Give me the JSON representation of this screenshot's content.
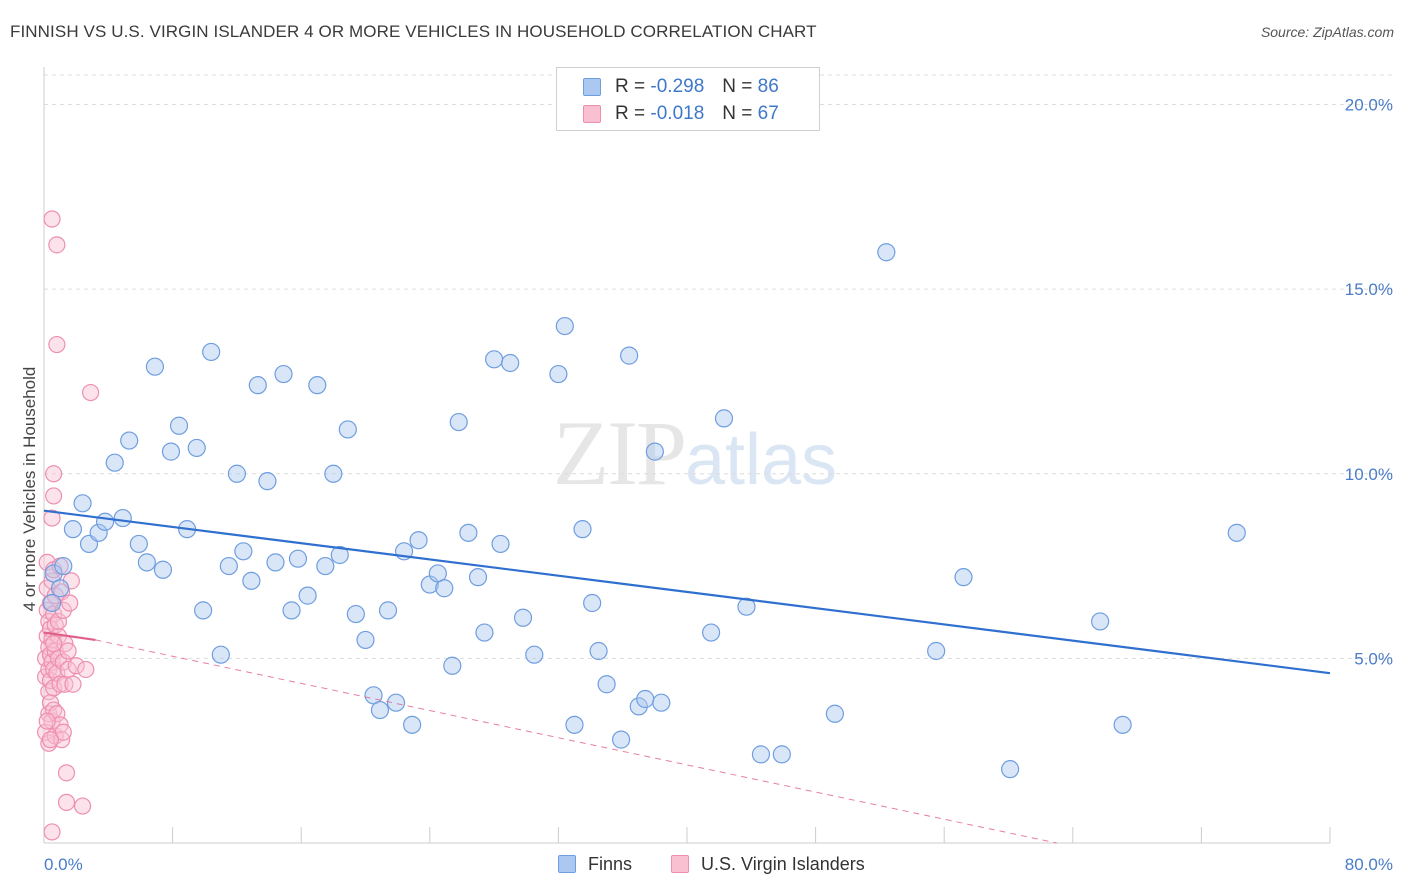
{
  "title": "FINNISH VS U.S. VIRGIN ISLANDER 4 OR MORE VEHICLES IN HOUSEHOLD CORRELATION CHART",
  "source": "Source: ZipAtlas.com",
  "watermark": {
    "zip": "ZIP",
    "atlas": "atlas"
  },
  "legend": {
    "rows": [
      {
        "r_label": "R =",
        "r_value": "-0.298",
        "n_label": "N =",
        "n_value": "86",
        "color": "#aac8f0",
        "border": "#6f9ee0"
      },
      {
        "r_label": "R =",
        "r_value": "-0.018",
        "n_label": "N =",
        "n_value": "67",
        "color": "#f9c0d2",
        "border": "#ee8fae"
      }
    ]
  },
  "bottom_legend": [
    {
      "label": "Finns",
      "color": "#aac8f0",
      "border": "#6f9ee0"
    },
    {
      "label": "U.S. Virgin Islanders",
      "color": "#f9c0d2",
      "border": "#ee8fae"
    }
  ],
  "chart_data": {
    "type": "scatter",
    "title": "FINNISH VS U.S. VIRGIN ISLANDER 4 OR MORE VEHICLES IN HOUSEHOLD CORRELATION CHART",
    "xlabel": "",
    "ylabel": "4 or more Vehicles in Household",
    "xlim": [
      0,
      80
    ],
    "ylim": [
      0,
      20.8
    ],
    "x_tick_labels": [
      "0.0%",
      "80.0%"
    ],
    "y_ticks": [
      5,
      10,
      15,
      20
    ],
    "y_tick_labels": [
      "5.0%",
      "10.0%",
      "15.0%",
      "20.0%"
    ],
    "grid": true,
    "legend_position": "top-center",
    "series": [
      {
        "name": "Finns",
        "color": "#6f9ee0",
        "fill": "#aac8f0",
        "line_color": "#2f6fd0",
        "trend": {
          "x": [
            0,
            80
          ],
          "y": [
            9.0,
            4.6
          ]
        },
        "points": [
          [
            0.5,
            6.5
          ],
          [
            0.6,
            7.3
          ],
          [
            1.0,
            6.9
          ],
          [
            1.2,
            7.5
          ],
          [
            1.8,
            8.5
          ],
          [
            2.4,
            9.2
          ],
          [
            2.8,
            8.1
          ],
          [
            3.4,
            8.4
          ],
          [
            3.8,
            8.7
          ],
          [
            4.4,
            10.3
          ],
          [
            4.9,
            8.8
          ],
          [
            5.3,
            10.9
          ],
          [
            5.9,
            8.1
          ],
          [
            6.4,
            7.6
          ],
          [
            6.9,
            12.9
          ],
          [
            7.4,
            7.4
          ],
          [
            7.9,
            10.6
          ],
          [
            8.4,
            11.3
          ],
          [
            8.9,
            8.5
          ],
          [
            9.5,
            10.7
          ],
          [
            9.9,
            6.3
          ],
          [
            10.4,
            13.3
          ],
          [
            11.0,
            5.1
          ],
          [
            11.5,
            7.5
          ],
          [
            12.0,
            10.0
          ],
          [
            12.4,
            7.9
          ],
          [
            12.9,
            7.1
          ],
          [
            13.3,
            12.4
          ],
          [
            13.9,
            9.8
          ],
          [
            14.4,
            7.6
          ],
          [
            14.9,
            12.7
          ],
          [
            15.4,
            6.3
          ],
          [
            15.8,
            7.7
          ],
          [
            16.4,
            6.7
          ],
          [
            17.0,
            12.4
          ],
          [
            17.5,
            7.5
          ],
          [
            18.0,
            10.0
          ],
          [
            18.4,
            7.8
          ],
          [
            18.9,
            11.2
          ],
          [
            19.4,
            6.2
          ],
          [
            20.0,
            5.5
          ],
          [
            20.5,
            4.0
          ],
          [
            20.9,
            3.6
          ],
          [
            21.4,
            6.3
          ],
          [
            21.9,
            3.8
          ],
          [
            22.4,
            7.9
          ],
          [
            22.9,
            3.2
          ],
          [
            23.3,
            8.2
          ],
          [
            24.0,
            7.0
          ],
          [
            24.5,
            7.3
          ],
          [
            24.9,
            6.9
          ],
          [
            25.4,
            4.8
          ],
          [
            25.8,
            11.4
          ],
          [
            26.4,
            8.4
          ],
          [
            27.0,
            7.2
          ],
          [
            27.4,
            5.7
          ],
          [
            28.0,
            13.1
          ],
          [
            28.4,
            8.1
          ],
          [
            29.0,
            13.0
          ],
          [
            29.8,
            6.1
          ],
          [
            30.5,
            5.1
          ],
          [
            32.0,
            12.7
          ],
          [
            32.4,
            14.0
          ],
          [
            33.0,
            3.2
          ],
          [
            33.5,
            8.5
          ],
          [
            34.1,
            6.5
          ],
          [
            34.5,
            5.2
          ],
          [
            35.0,
            4.3
          ],
          [
            35.9,
            2.8
          ],
          [
            36.4,
            13.2
          ],
          [
            37.0,
            3.7
          ],
          [
            37.4,
            3.9
          ],
          [
            38.0,
            10.6
          ],
          [
            38.4,
            3.8
          ],
          [
            41.5,
            5.7
          ],
          [
            42.3,
            11.5
          ],
          [
            43.7,
            6.4
          ],
          [
            44.6,
            2.4
          ],
          [
            45.9,
            2.4
          ],
          [
            49.2,
            3.5
          ],
          [
            52.4,
            16.0
          ],
          [
            55.5,
            5.2
          ],
          [
            57.2,
            7.2
          ],
          [
            60.1,
            2.0
          ],
          [
            65.7,
            6.0
          ],
          [
            67.1,
            3.2
          ],
          [
            74.2,
            8.4
          ]
        ]
      },
      {
        "name": "U.S. Virgin Islanders",
        "color": "#ee8fae",
        "fill": "#f9c0d2",
        "line_color": "#e0608a",
        "trend_solid": {
          "x": [
            0,
            3.2
          ],
          "y": [
            5.7,
            5.5
          ]
        },
        "trend_dashed": {
          "x": [
            3.2,
            63
          ],
          "y": [
            5.5,
            0
          ]
        },
        "points": [
          [
            0.1,
            3.0
          ],
          [
            0.1,
            4.5
          ],
          [
            0.1,
            5.0
          ],
          [
            0.2,
            5.6
          ],
          [
            0.2,
            6.3
          ],
          [
            0.2,
            6.9
          ],
          [
            0.2,
            7.6
          ],
          [
            0.3,
            2.7
          ],
          [
            0.3,
            3.5
          ],
          [
            0.3,
            4.1
          ],
          [
            0.3,
            4.7
          ],
          [
            0.3,
            5.3
          ],
          [
            0.3,
            6.0
          ],
          [
            0.4,
            3.8
          ],
          [
            0.4,
            4.4
          ],
          [
            0.4,
            5.1
          ],
          [
            0.4,
            5.8
          ],
          [
            0.4,
            6.5
          ],
          [
            0.5,
            3.3
          ],
          [
            0.5,
            4.9
          ],
          [
            0.5,
            5.5
          ],
          [
            0.5,
            7.1
          ],
          [
            0.5,
            8.8
          ],
          [
            0.5,
            16.9
          ],
          [
            0.5,
            0.3
          ],
          [
            0.6,
            4.2
          ],
          [
            0.6,
            4.7
          ],
          [
            0.6,
            6.2
          ],
          [
            0.6,
            7.4
          ],
          [
            0.6,
            10.0
          ],
          [
            0.6,
            9.4
          ],
          [
            0.6,
            3.6
          ],
          [
            0.7,
            2.9
          ],
          [
            0.7,
            5.2
          ],
          [
            0.7,
            5.9
          ],
          [
            0.7,
            6.7
          ],
          [
            0.8,
            16.2
          ],
          [
            0.8,
            13.5
          ],
          [
            0.8,
            4.6
          ],
          [
            0.8,
            3.5
          ],
          [
            0.9,
            5.0
          ],
          [
            0.9,
            5.6
          ],
          [
            0.9,
            6.0
          ],
          [
            1.0,
            3.2
          ],
          [
            1.0,
            4.3
          ],
          [
            1.0,
            7.5
          ],
          [
            1.1,
            2.8
          ],
          [
            1.1,
            6.8
          ],
          [
            1.2,
            3.0
          ],
          [
            1.2,
            4.9
          ],
          [
            1.2,
            6.3
          ],
          [
            1.3,
            4.3
          ],
          [
            1.3,
            5.4
          ],
          [
            1.4,
            1.9
          ],
          [
            1.4,
            1.1
          ],
          [
            1.5,
            4.7
          ],
          [
            1.5,
            5.2
          ],
          [
            1.6,
            6.5
          ],
          [
            1.7,
            7.1
          ],
          [
            1.8,
            4.3
          ],
          [
            2.0,
            4.8
          ],
          [
            2.4,
            1.0
          ],
          [
            2.6,
            4.7
          ],
          [
            2.9,
            12.2
          ],
          [
            0.2,
            3.3
          ],
          [
            0.4,
            2.8
          ],
          [
            0.6,
            5.4
          ]
        ]
      }
    ]
  }
}
